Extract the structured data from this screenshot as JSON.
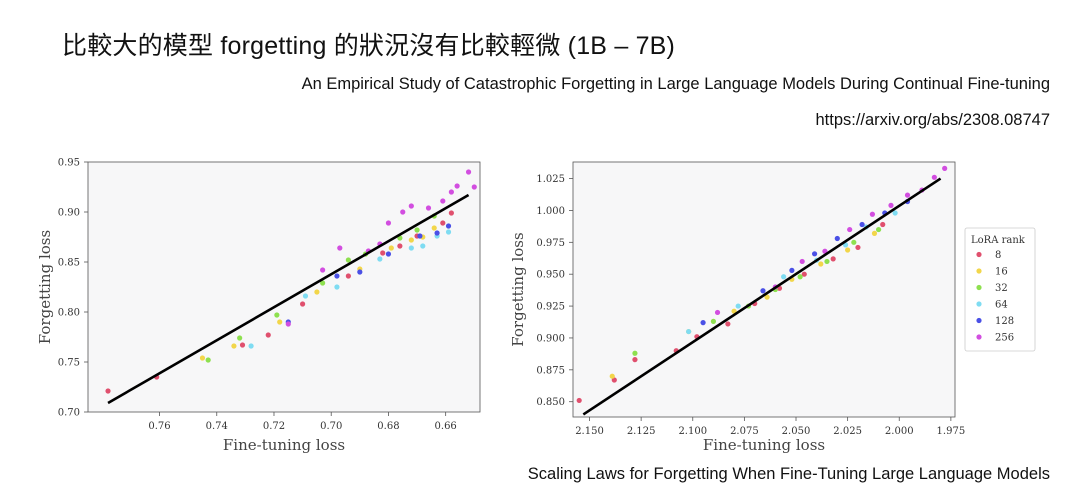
{
  "slide": {
    "title": "比較大的模型 forgetting 的狀況沒有比較輕微 (1B – 7B)",
    "subtitle": "An Empirical Study of Catastrophic Forgetting in Large Language Models During Continual Fine-tuning",
    "url": "https://arxiv.org/abs/2308.08747",
    "caption": "Scaling Laws for Forgetting When Fine-Tuning Large Language Models"
  },
  "legend": {
    "title": "LoRA rank",
    "entries": [
      {
        "label": "8",
        "color": "#e0506e"
      },
      {
        "label": "16",
        "color": "#f2d64a"
      },
      {
        "label": "32",
        "color": "#8ee04f"
      },
      {
        "label": "64",
        "color": "#7fdcf2"
      },
      {
        "label": "128",
        "color": "#4a50e6"
      },
      {
        "label": "256",
        "color": "#d24ee0"
      }
    ]
  },
  "chart_data": [
    {
      "type": "scatter",
      "xlabel": "Fine-tuning loss",
      "ylabel": "Forgetting loss",
      "xlim": [
        0.785,
        0.648
      ],
      "ylim": [
        0.7,
        0.95
      ],
      "x_reversed": true,
      "xticks": [
        "0.76",
        "0.74",
        "0.72",
        "0.70",
        "0.68",
        "0.66"
      ],
      "xtick_values": [
        0.76,
        0.74,
        0.72,
        0.7,
        0.68,
        0.66
      ],
      "yticks": [
        "0.70",
        "0.75",
        "0.80",
        "0.85",
        "0.90",
        "0.95"
      ],
      "ytick_values": [
        0.7,
        0.75,
        0.8,
        0.85,
        0.9,
        0.95
      ],
      "fit_line": [
        [
          0.778,
          0.709
        ],
        [
          0.652,
          0.917
        ]
      ],
      "series": [
        {
          "name": "8",
          "points": [
            [
              0.778,
              0.721
            ],
            [
              0.761,
              0.735
            ],
            [
              0.731,
              0.767
            ],
            [
              0.722,
              0.777
            ],
            [
              0.71,
              0.808
            ],
            [
              0.694,
              0.836
            ],
            [
              0.682,
              0.859
            ],
            [
              0.676,
              0.866
            ],
            [
              0.67,
              0.876
            ],
            [
              0.661,
              0.889
            ],
            [
              0.658,
              0.899
            ]
          ]
        },
        {
          "name": "16",
          "points": [
            [
              0.745,
              0.754
            ],
            [
              0.734,
              0.766
            ],
            [
              0.718,
              0.79
            ],
            [
              0.705,
              0.82
            ],
            [
              0.69,
              0.843
            ],
            [
              0.679,
              0.864
            ],
            [
              0.672,
              0.872
            ],
            [
              0.668,
              0.875
            ],
            [
              0.664,
              0.884
            ]
          ]
        },
        {
          "name": "32",
          "points": [
            [
              0.743,
              0.752
            ],
            [
              0.732,
              0.774
            ],
            [
              0.719,
              0.797
            ],
            [
              0.703,
              0.829
            ],
            [
              0.694,
              0.852
            ],
            [
              0.688,
              0.858
            ],
            [
              0.676,
              0.874
            ],
            [
              0.67,
              0.882
            ],
            [
              0.664,
              0.896
            ]
          ]
        },
        {
          "name": "64",
          "points": [
            [
              0.728,
              0.766
            ],
            [
              0.709,
              0.816
            ],
            [
              0.698,
              0.825
            ],
            [
              0.683,
              0.853
            ],
            [
              0.672,
              0.864
            ],
            [
              0.668,
              0.866
            ],
            [
              0.663,
              0.876
            ],
            [
              0.659,
              0.88
            ]
          ]
        },
        {
          "name": "128",
          "points": [
            [
              0.715,
              0.79
            ],
            [
              0.698,
              0.836
            ],
            [
              0.69,
              0.84
            ],
            [
              0.68,
              0.858
            ],
            [
              0.669,
              0.876
            ],
            [
              0.663,
              0.879
            ],
            [
              0.659,
              0.886
            ]
          ]
        },
        {
          "name": "256",
          "points": [
            [
              0.715,
              0.788
            ],
            [
              0.703,
              0.842
            ],
            [
              0.697,
              0.864
            ],
            [
              0.687,
              0.861
            ],
            [
              0.683,
              0.868
            ],
            [
              0.68,
              0.889
            ],
            [
              0.675,
              0.9
            ],
            [
              0.672,
              0.906
            ],
            [
              0.666,
              0.904
            ],
            [
              0.661,
              0.911
            ],
            [
              0.658,
              0.92
            ],
            [
              0.656,
              0.926
            ],
            [
              0.652,
              0.94
            ],
            [
              0.65,
              0.925
            ]
          ]
        }
      ]
    },
    {
      "type": "scatter",
      "xlabel": "Fine-tuning loss",
      "ylabel": "Forgetting loss",
      "xlim": [
        2.158,
        1.973
      ],
      "ylim": [
        0.838,
        1.038
      ],
      "x_reversed": true,
      "xticks": [
        "2.150",
        "2.125",
        "2.100",
        "2.075",
        "2.050",
        "2.025",
        "2.000",
        "1.975"
      ],
      "xtick_values": [
        2.15,
        2.125,
        2.1,
        2.075,
        2.05,
        2.025,
        2.0,
        1.975
      ],
      "yticks": [
        "0.850",
        "0.875",
        "0.900",
        "0.925",
        "0.950",
        "0.975",
        "1.000",
        "1.025"
      ],
      "ytick_values": [
        0.85,
        0.875,
        0.9,
        0.925,
        0.95,
        0.975,
        1.0,
        1.025
      ],
      "fit_line": [
        [
          2.153,
          0.84
        ],
        [
          1.98,
          1.025
        ]
      ],
      "series": [
        {
          "name": "8",
          "points": [
            [
              2.155,
              0.851
            ],
            [
              2.138,
              0.867
            ],
            [
              2.128,
              0.883
            ],
            [
              2.108,
              0.89
            ],
            [
              2.098,
              0.901
            ],
            [
              2.083,
              0.911
            ],
            [
              2.07,
              0.927
            ],
            [
              2.058,
              0.939
            ],
            [
              2.046,
              0.95
            ],
            [
              2.032,
              0.962
            ],
            [
              2.02,
              0.971
            ],
            [
              2.008,
              0.989
            ]
          ]
        },
        {
          "name": "16",
          "points": [
            [
              2.139,
              0.87
            ],
            [
              2.102,
              0.905
            ],
            [
              2.08,
              0.921
            ],
            [
              2.064,
              0.932
            ],
            [
              2.052,
              0.946
            ],
            [
              2.038,
              0.958
            ],
            [
              2.025,
              0.969
            ],
            [
              2.012,
              0.982
            ]
          ]
        },
        {
          "name": "32",
          "points": [
            [
              2.128,
              0.888
            ],
            [
              2.09,
              0.913
            ],
            [
              2.073,
              0.925
            ],
            [
              2.06,
              0.938
            ],
            [
              2.048,
              0.948
            ],
            [
              2.035,
              0.96
            ],
            [
              2.022,
              0.975
            ],
            [
              2.01,
              0.985
            ]
          ]
        },
        {
          "name": "64",
          "points": [
            [
              2.102,
              0.905
            ],
            [
              2.078,
              0.925
            ],
            [
              2.056,
              0.948
            ],
            [
              2.04,
              0.961
            ],
            [
              2.026,
              0.973
            ],
            [
              2.016,
              0.987
            ],
            [
              2.002,
              0.998
            ]
          ]
        },
        {
          "name": "128",
          "points": [
            [
              2.095,
              0.912
            ],
            [
              2.066,
              0.937
            ],
            [
              2.052,
              0.953
            ],
            [
              2.041,
              0.966
            ],
            [
              2.03,
              0.978
            ],
            [
              2.018,
              0.989
            ],
            [
              2.007,
              0.998
            ],
            [
              1.996,
              1.007
            ]
          ]
        },
        {
          "name": "256",
          "points": [
            [
              2.088,
              0.92
            ],
            [
              2.06,
              0.94
            ],
            [
              2.047,
              0.96
            ],
            [
              2.036,
              0.968
            ],
            [
              2.024,
              0.985
            ],
            [
              2.013,
              0.997
            ],
            [
              2.004,
              1.004
            ],
            [
              1.996,
              1.012
            ],
            [
              1.989,
              1.016
            ],
            [
              1.983,
              1.026
            ],
            [
              1.978,
              1.033
            ]
          ]
        }
      ]
    }
  ]
}
